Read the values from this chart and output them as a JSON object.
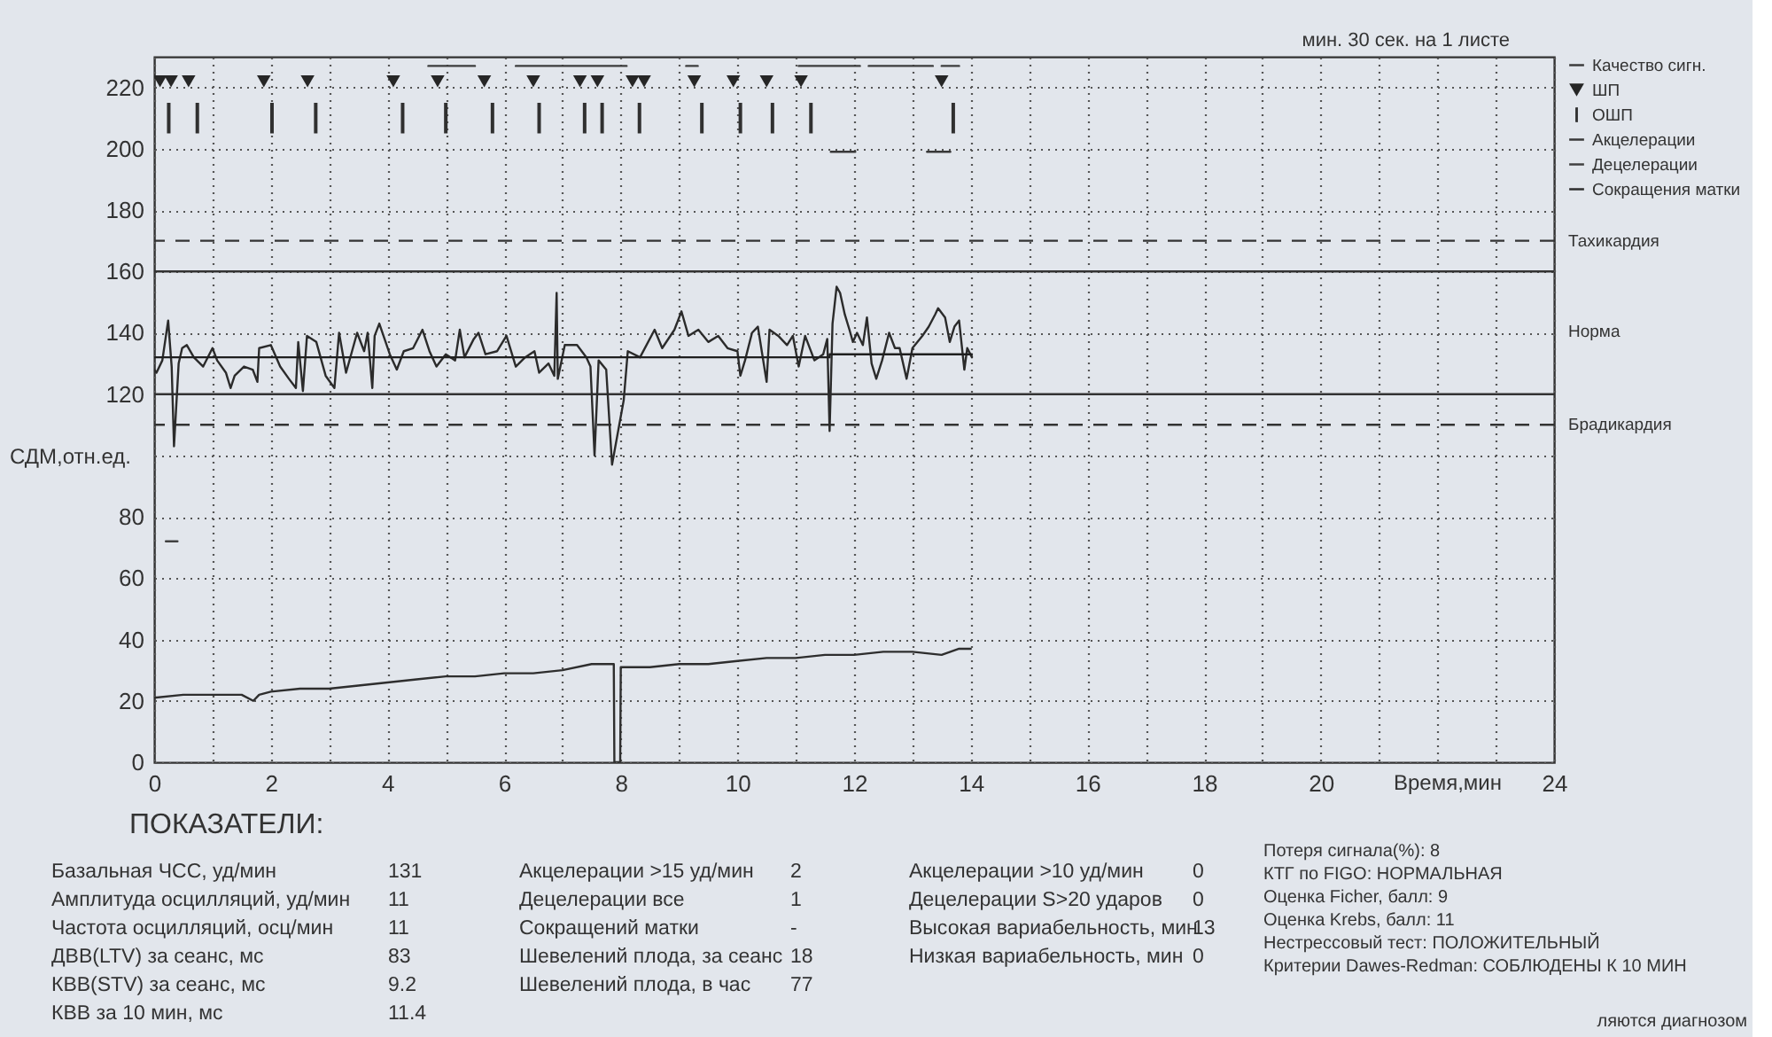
{
  "chart_data": [
    {
      "type": "line",
      "xlabel": "Время,мин",
      "ylabel": "СДМ,отн.ед.",
      "xlim": [
        0,
        24
      ],
      "ylim": [
        0,
        230
      ],
      "xticks": [
        0,
        {
          "value": 1,
          "label": null
        },
        2,
        {
          "value": 3,
          "label": null
        },
        4,
        {
          "value": 5,
          "label": null
        },
        6,
        {
          "value": 7,
          "label": null
        },
        8,
        {
          "value": 9,
          "label": null
        },
        10,
        {
          "value": 11,
          "label": null
        },
        12,
        {
          "value": 13,
          "label": null
        },
        14,
        {
          "value": 15,
          "label": null
        },
        16,
        {
          "value": 17,
          "label": null
        },
        18,
        {
          "value": 19,
          "label": null
        },
        20,
        {
          "value": 21,
          "label": null
        },
        {
          "value": 22,
          "label": null
        },
        {
          "value": 23,
          "label": null
        },
        24
      ],
      "yticks": [
        0,
        20,
        40,
        60,
        80,
        {
          "value": 100,
          "label": null
        },
        120,
        140,
        160,
        180,
        200,
        220
      ],
      "grid": true,
      "legend": "right",
      "ref_lines": [
        {
          "axis": "y",
          "value": 170,
          "label": "Тахикардия",
          "line_style": "dashed"
        },
        {
          "axis": "y",
          "value": 160
        },
        {
          "axis": "y",
          "value": 120
        },
        {
          "axis": "y",
          "value": 110,
          "label": "Брадикардия",
          "line_style": "dashed"
        }
      ],
      "annotations": [
        "мин. 30 сек. на 1 листе",
        "Норма"
      ],
      "series": [
        {
          "type": "line",
          "color": "#2b2b2b",
          "x": [
            0,
            0.04,
            0.14,
            0.24,
            0.3,
            0.34,
            0.42,
            0.48,
            0.56,
            0.68,
            0.84,
            1.0,
            1.08,
            1.23,
            1.31,
            1.38,
            1.54,
            1.69,
            1.77,
            1.8,
            2.0,
            2.16,
            2.31,
            2.43,
            2.47,
            2.55,
            2.62,
            2.78,
            2.94,
            3.09,
            3.17,
            3.29,
            3.48,
            3.6,
            3.66,
            3.74,
            3.78,
            3.86,
            4.04,
            4.16,
            4.28,
            4.44,
            4.6,
            4.72,
            4.84,
            5.0,
            5.16,
            5.24,
            5.32,
            5.48,
            5.56,
            5.68,
            5.88,
            6.04,
            6.2,
            6.36,
            6.52,
            6.6,
            6.76,
            6.86,
            6.9,
            6.92,
            7.04,
            7.25,
            7.41,
            7.48,
            7.55,
            7.62,
            7.75,
            7.85,
            8.05,
            8.12,
            8.33,
            8.58,
            8.71,
            8.92,
            9.04,
            9.16,
            9.33,
            9.5,
            9.67,
            9.83,
            10.0,
            10.05,
            10.13,
            10.25,
            10.35,
            10.5,
            10.55,
            10.7,
            10.85,
            10.95,
            11.05,
            11.16,
            11.32,
            11.47,
            11.54,
            11.58,
            11.63,
            11.7,
            11.76,
            11.84,
            11.92,
            11.98,
            12.05,
            12.15,
            12.22,
            12.3,
            12.38,
            12.48,
            12.6,
            12.7,
            12.78,
            12.9,
            13.0,
            13.17,
            13.28,
            13.39,
            13.44,
            13.56,
            13.64,
            13.72,
            13.8,
            13.89,
            13.94,
            14.02
          ],
          "values": [
            128,
            127,
            131,
            144,
            129,
            103,
            130,
            135,
            136,
            132,
            129,
            135,
            131,
            127,
            122,
            126,
            129,
            128,
            124,
            135,
            136,
            129,
            125,
            122,
            137,
            121,
            139,
            137,
            126,
            122,
            140,
            127,
            140,
            134,
            140,
            122,
            139,
            143,
            133,
            128,
            134,
            135,
            141,
            134,
            129,
            133,
            131,
            141,
            132,
            138,
            140,
            133,
            134,
            139,
            129,
            132,
            134,
            127,
            130,
            126,
            153,
            125,
            136,
            136,
            132,
            129,
            100,
            131,
            128,
            97,
            118,
            134,
            132,
            141,
            135,
            141,
            147,
            139,
            141,
            137,
            139,
            135,
            134,
            126,
            131,
            140,
            142,
            124,
            141,
            139,
            136,
            139,
            129,
            139,
            131,
            133,
            138,
            108,
            143,
            155,
            153,
            146,
            141,
            137,
            140,
            136,
            145,
            130,
            125,
            131,
            140,
            135,
            135,
            125,
            135,
            139,
            142,
            146,
            148,
            145,
            137,
            142,
            144,
            128,
            135,
            132
          ]
        },
        {
          "type": "line",
          "color": "#1f1f1f",
          "x": [
            0,
            11.58,
            11.58,
            14.02
          ],
          "values": [
            132,
            132,
            133,
            133
          ]
        },
        {
          "name": "Качество сигн.",
          "type": "line",
          "color": "#3d3d3d",
          "x": [
            4.7,
            5.5,
            null,
            6.2,
            8.1,
            null,
            9.12,
            9.32,
            null,
            11.05,
            12.1,
            null,
            12.25,
            13.35,
            null,
            13.5,
            13.8
          ],
          "values": [
            227,
            227,
            null,
            227,
            227,
            null,
            227,
            227,
            null,
            227,
            227,
            null,
            227,
            227,
            null,
            227,
            227
          ]
        },
        {
          "name": "ШП",
          "type": "scatter",
          "marker": "triangle",
          "color": "#262626",
          "x": [
            0.1,
            0.29,
            0.59,
            1.88,
            2.63,
            4.1,
            4.86,
            5.66,
            6.5,
            7.3,
            7.6,
            8.2,
            8.4,
            9.26,
            9.93,
            10.5,
            11.09,
            13.5
          ],
          "values": [
            222,
            222,
            222,
            222,
            222,
            222,
            222,
            222,
            222,
            222,
            222,
            222,
            222,
            222,
            222,
            222,
            222,
            222
          ]
        },
        {
          "name": "ОШП",
          "type": "bar",
          "color": "#303030",
          "x": [
            0.25,
            0.74,
            2.02,
            2.77,
            4.26,
            5.0,
            5.8,
            6.6,
            7.38,
            7.68,
            8.32,
            9.39,
            10.05,
            10.6,
            11.26,
            13.7
          ],
          "base": [
            205,
            205,
            205,
            205,
            205,
            205,
            205,
            205,
            205,
            205,
            205,
            205,
            205,
            205,
            205,
            205
          ],
          "values": [
            10,
            10,
            10,
            10,
            10,
            10,
            10,
            10,
            10,
            10,
            10,
            10,
            10,
            10,
            10,
            10
          ]
        },
        {
          "name": "Акцелерации",
          "type": "line",
          "color": "#383838",
          "x": [
            11.6,
            12.02,
            null,
            13.25,
            13.65
          ],
          "values": [
            199,
            199,
            null,
            199,
            199
          ]
        },
        {
          "name": "Децелерации",
          "type": "line",
          "color": "#414141",
          "x": [
            0.2,
            0.4
          ],
          "values": [
            72,
            72
          ]
        },
        {
          "name": "Сокращения матки",
          "type": "line",
          "color": "#2e2e2e",
          "x": [
            0,
            0.5,
            1,
            1.5,
            1.7,
            1.8,
            2,
            2.5,
            3,
            3.5,
            4,
            4.5,
            5,
            5.5,
            6,
            6.5,
            7,
            7.5,
            7.88,
            7.89,
            7.99,
            8.0,
            8.5,
            9,
            9.5,
            10,
            10.5,
            11,
            11.5,
            12,
            12.5,
            13,
            13.5,
            13.8,
            14
          ],
          "values": [
            21,
            22,
            22,
            22,
            20,
            22,
            23,
            24,
            24,
            25,
            26,
            27,
            28,
            28,
            29,
            29,
            30,
            32,
            32,
            0,
            0,
            31,
            31,
            32,
            32,
            33,
            34,
            34,
            35,
            35,
            36,
            36,
            35,
            37,
            37
          ]
        }
      ]
    },
    {
      "type": "other",
      "title": "ПОКАЗАТЕЛИ:",
      "annotations": [
        "Базальная ЧСС, уд/мин",
        "131",
        "Амплитуда осцилляций, уд/мин",
        "11",
        "Частота осцилляций, осц/мин",
        "11",
        "ДВВ(LTV) за сеанс, мс",
        "83",
        "КВВ(STV) за сеанс, мс",
        "9.2",
        "КВВ за 10 мин, мс",
        "11.4",
        "Акцелерации >15 уд/мин",
        "2",
        "Децелерации все",
        "1",
        "Сокращений матки",
        "-",
        "Шевелений плода, за сеанс",
        "18",
        "Шевелений плода, в час",
        "77",
        "Акцелерации >10 уд/мин",
        "0",
        "Децелерации S>20 ударов",
        "0",
        "Высокая вариабельность, мин",
        "13",
        "Низкая вариабельность, мин",
        "0",
        "Потеря сигнала(%): 8",
        "КТГ по FIGO: НОРМАЛЬНАЯ",
        "Оценка Ficher, балл: 9",
        "Оценка Krebs, балл: 11",
        "Нестрессовый тест: ПОЛОЖИТЕЛЬНЫЙ",
        "Критерии Dawes-Redman: СОБЛЮДЕНЫ К 10 МИН",
        "ляются диагнозом"
      ]
    }
  ]
}
